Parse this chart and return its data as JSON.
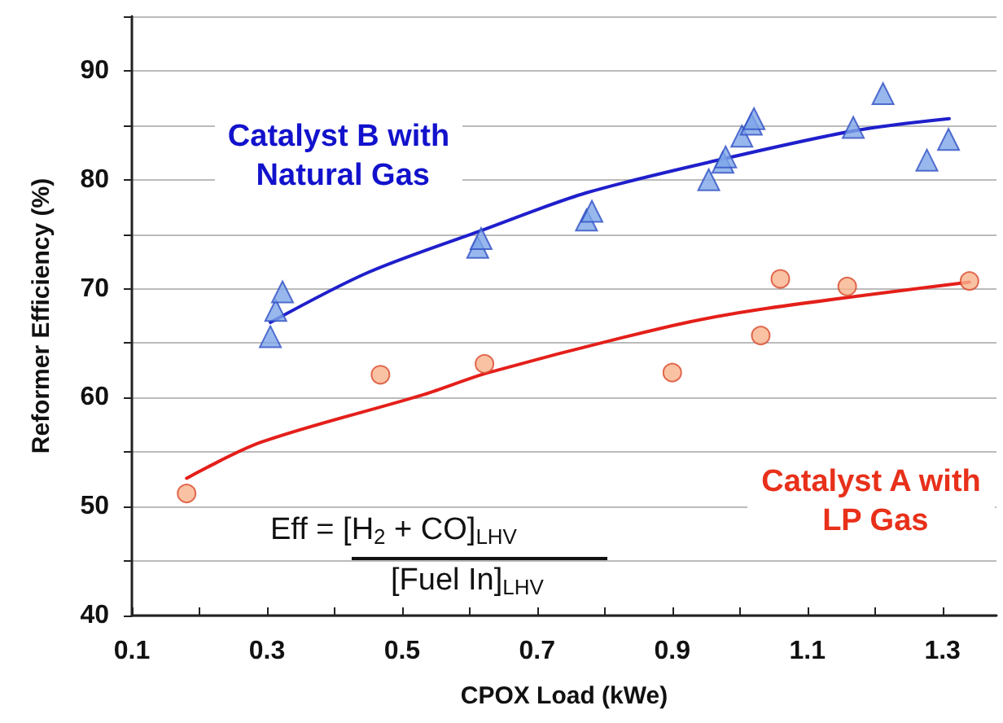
{
  "chart_data": {
    "type": "scatter",
    "xlabel": "CPOX Load (kWe)",
    "ylabel": "Reformer Efficiency (%)",
    "xlim": [
      0.1,
      1.38
    ],
    "ylim": [
      40,
      95
    ],
    "xticks": [
      0.1,
      {
        "value": 0.2,
        "label": null
      },
      0.3,
      {
        "value": 0.4,
        "label": null
      },
      0.5,
      {
        "value": 0.6,
        "label": null
      },
      0.7,
      {
        "value": 0.8,
        "label": null
      },
      0.9,
      {
        "value": 1.0,
        "label": null
      },
      1.1,
      {
        "value": 1.2,
        "label": null
      },
      1.3
    ],
    "yticks": [
      40,
      {
        "value": 45,
        "label": null
      },
      50,
      {
        "value": 55,
        "label": null
      },
      60,
      {
        "value": 65,
        "label": null
      },
      70,
      {
        "value": 75,
        "label": null
      },
      80,
      {
        "value": 85,
        "label": null
      },
      90,
      {
        "value": 95,
        "label": null
      }
    ],
    "grid": "y",
    "legend": false,
    "annotations": [
      "Eff = [H$_{2}$ + CO]$_{LHV}$",
      "[Fuel In]$_{LHV}$"
    ],
    "series": [
      {
        "name": "Catalyst B with Natural Gas",
        "marker": "triangle",
        "color": "#7ea6e8",
        "x": [
          0.305,
          0.313,
          0.323,
          0.612,
          0.617,
          0.773,
          0.781,
          0.954,
          0.975,
          0.979,
          1.003,
          1.017,
          1.021,
          1.168,
          1.212,
          1.277,
          1.309
        ],
        "values": [
          65.6,
          68.0,
          69.7,
          73.8,
          74.6,
          76.3,
          77.1,
          80.0,
          81.6,
          82.1,
          84.0,
          85.1,
          85.6,
          84.8,
          87.9,
          81.8,
          83.7
        ]
      },
      {
        "name": "Catalyst A with LP Gas",
        "marker": "circle",
        "color": "#f7b38c",
        "x": [
          0.181,
          0.468,
          0.622,
          0.9,
          1.031,
          1.06,
          1.159,
          1.34
        ],
        "values": [
          51.2,
          62.1,
          63.1,
          62.3,
          65.7,
          70.9,
          70.2,
          70.7
        ]
      },
      {
        "type": "line",
        "marker": "none",
        "line_style": "solid",
        "color": "#1f1fcc",
        "x": [
          0.305,
          0.45,
          0.62,
          0.773,
          0.975,
          1.17,
          1.31
        ],
        "values": [
          66.9,
          71.5,
          75.4,
          78.8,
          81.9,
          84.5,
          85.6
        ]
      },
      {
        "type": "line",
        "marker": "none",
        "line_style": "solid",
        "color": "#e41f1a",
        "x": [
          0.181,
          0.291,
          0.533,
          0.628,
          0.9,
          1.03,
          1.34
        ],
        "values": [
          52.6,
          55.9,
          60.3,
          62.3,
          66.6,
          68.1,
          70.6
        ]
      }
    ]
  }
}
